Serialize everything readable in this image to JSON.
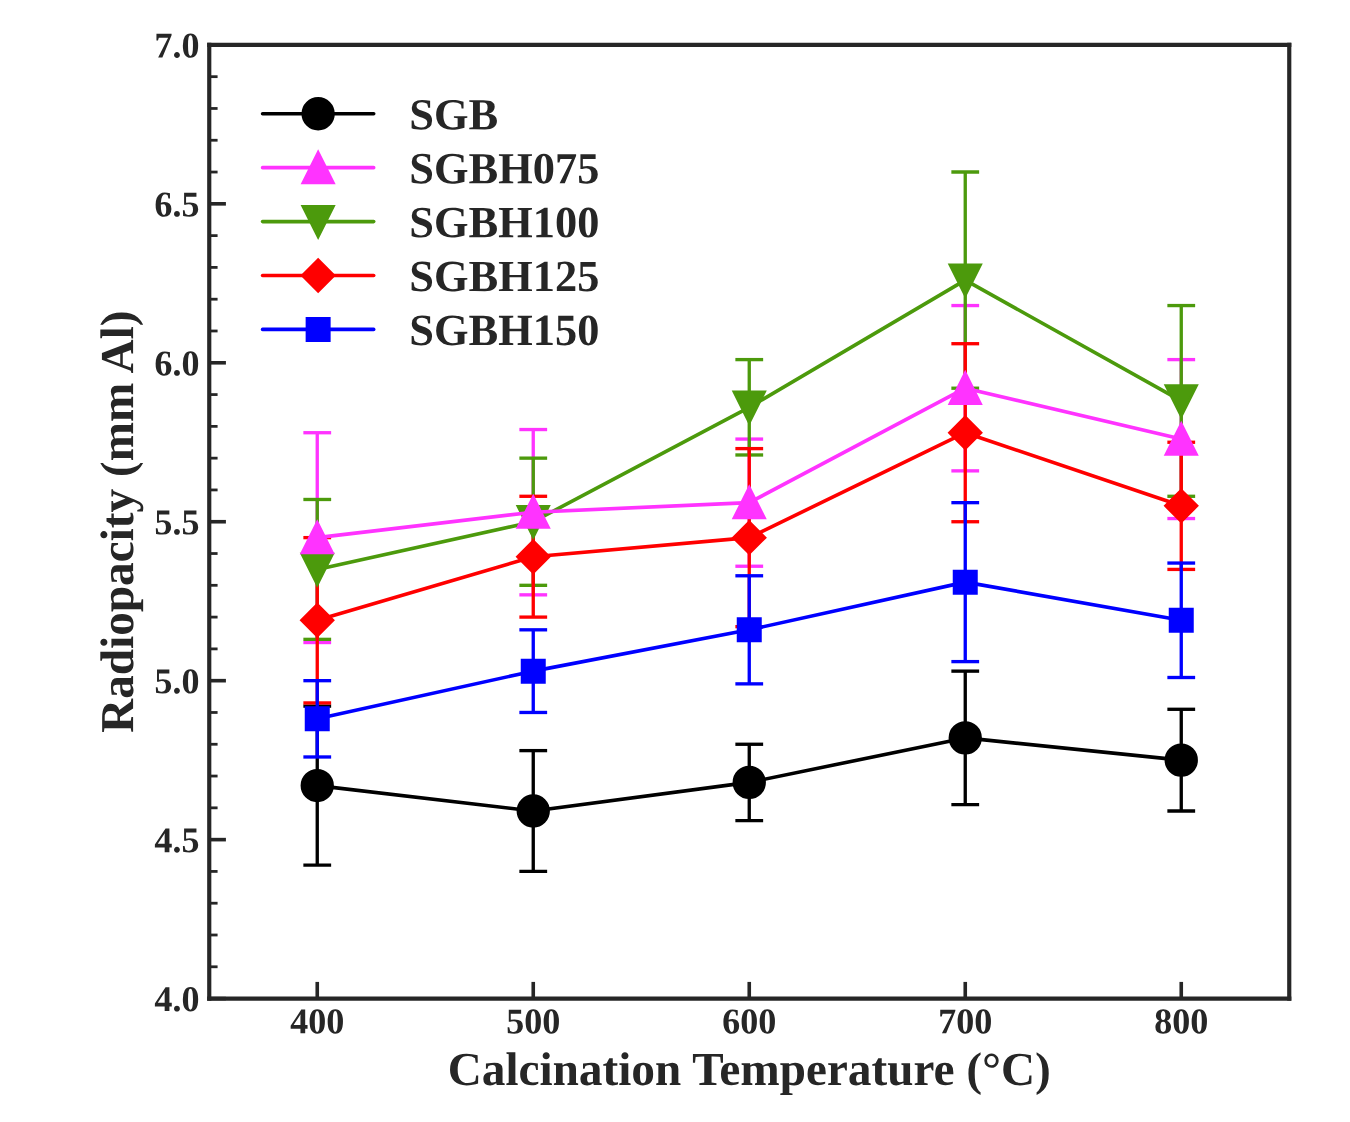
{
  "chart_data": {
    "type": "line",
    "xlabel": "Calcination Temperature (°C)",
    "ylabel": "Radiopacity (mm Al)",
    "x": [
      400,
      500,
      600,
      700,
      800
    ],
    "xlim": [
      350,
      850
    ],
    "xticks": [
      400,
      500,
      600,
      700,
      800
    ],
    "ylim": [
      4.0,
      7.0
    ],
    "yticks": [
      {
        "value": 4.0,
        "label": "4.0"
      },
      {
        "value": 4.5,
        "label": "4.5"
      },
      {
        "value": 5.0,
        "label": "5.0"
      },
      {
        "value": 5.5,
        "label": "5.5"
      },
      {
        "value": 6.0,
        "label": "6.0"
      },
      {
        "value": 6.5,
        "label": "6.5"
      },
      {
        "value": 7.0,
        "label": "7.0"
      }
    ],
    "grid": false,
    "legend": "top left",
    "line_style": "solid",
    "series": [
      {
        "name": "SGB",
        "color": "#000000",
        "marker": "circle",
        "values": [
          4.67,
          4.59,
          4.68,
          4.82,
          4.75
        ],
        "errors": [
          0.25,
          0.19,
          0.12,
          0.21,
          0.16
        ]
      },
      {
        "name": "SGBH075",
        "color": "#ff33ff",
        "marker": "triangle",
        "values": [
          5.45,
          5.53,
          5.56,
          5.92,
          5.76
        ],
        "errors": [
          0.33,
          0.26,
          0.2,
          0.26,
          0.25
        ]
      },
      {
        "name": "SGBH100",
        "color": "#4c9a0c",
        "marker": "triangle_down",
        "values": [
          5.35,
          5.5,
          5.86,
          6.26,
          5.88
        ],
        "errors": [
          0.22,
          0.2,
          0.15,
          0.34,
          0.3
        ]
      },
      {
        "name": "SGBH125",
        "color": "#ff0000",
        "marker": "diamond",
        "values": [
          5.19,
          5.39,
          5.45,
          5.78,
          5.55
        ],
        "errors": [
          0.26,
          0.19,
          0.28,
          0.28,
          0.2
        ]
      },
      {
        "name": "SGBH150",
        "color": "#0000ff",
        "marker": "square",
        "values": [
          4.88,
          5.03,
          5.16,
          5.31,
          5.19
        ],
        "errors": [
          0.12,
          0.13,
          0.17,
          0.25,
          0.18
        ]
      }
    ]
  }
}
